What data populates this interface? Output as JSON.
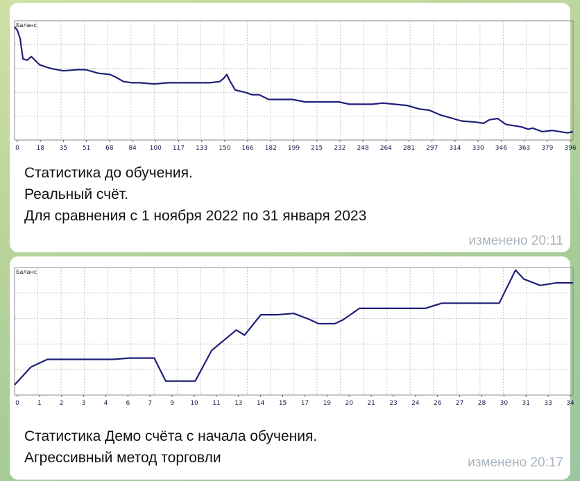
{
  "messages": [
    {
      "caption_lines": [
        "Статистика до обучения.",
        "Реальный счёт.",
        "Для сравнения с 1 ноября 2022 по 31 января 2023"
      ],
      "edited": "изменено 20:11"
    },
    {
      "caption_lines": [
        "Статистика Демо счёта с начала обучения.",
        "Агрессивный метод торговли"
      ],
      "edited": "изменено 20:17"
    }
  ],
  "colors": {
    "line": "#1f1f7a",
    "grid": "#c8c8c8",
    "tick": "#1a1a4a"
  },
  "chart_data": [
    {
      "type": "line",
      "title": "Баланс",
      "xlabel": "",
      "ylabel": "",
      "x_ticks": [
        "0",
        "18",
        "35",
        "51",
        "68",
        "84",
        "100",
        "117",
        "133",
        "150",
        "166",
        "182",
        "199",
        "215",
        "232",
        "248",
        "264",
        "281",
        "297",
        "314",
        "330",
        "346",
        "363",
        "379",
        "396"
      ],
      "xlim": [
        0,
        400
      ],
      "ylim": [
        0,
        100
      ],
      "grid": true,
      "series": [
        {
          "x": [
            0,
            2,
            4,
            6,
            9,
            12,
            18,
            26,
            35,
            45,
            51,
            60,
            68,
            72,
            78,
            84,
            90,
            100,
            110,
            117,
            125,
            133,
            140,
            147,
            150,
            152,
            154,
            158,
            165,
            170,
            175,
            182,
            190,
            199,
            208,
            215,
            225,
            232,
            240,
            248,
            256,
            264,
            272,
            281,
            290,
            297,
            305,
            314,
            320,
            330,
            336,
            340,
            346,
            352,
            363,
            368,
            371,
            378,
            385,
            396,
            400
          ],
          "y": [
            95,
            92,
            85,
            68,
            67,
            70,
            63,
            60,
            58,
            59,
            59,
            56,
            55,
            53,
            49,
            48,
            48,
            47,
            48,
            48,
            48,
            48,
            48,
            49,
            52,
            55,
            50,
            42,
            40,
            38,
            38,
            34,
            34,
            34,
            32,
            32,
            32,
            32,
            30,
            30,
            30,
            31,
            30,
            29,
            26,
            25,
            21,
            18,
            16,
            15,
            14,
            17,
            18,
            13,
            11,
            9,
            10,
            7,
            8,
            6,
            7
          ]
        }
      ]
    },
    {
      "type": "line",
      "title": "Баланс",
      "xlabel": "",
      "ylabel": "",
      "x_ticks": [
        "0",
        "1",
        "2",
        "3",
        "4",
        "6",
        "7",
        "9",
        "10",
        "11",
        "13",
        "14",
        "15",
        "17",
        "19",
        "20",
        "21",
        "23",
        "24",
        "26",
        "27",
        "28",
        "30",
        "31",
        "33",
        "34"
      ],
      "xlim": [
        0,
        34
      ],
      "ylim": [
        0,
        100
      ],
      "grid": true,
      "series": [
        {
          "x": [
            0,
            1,
            2,
            2.5,
            4,
            6,
            7,
            8.5,
            9.2,
            10,
            11,
            12,
            13.5,
            14,
            15,
            16,
            17,
            18,
            18.5,
            19.5,
            20,
            21,
            23,
            24,
            25,
            26,
            27,
            28,
            29.5,
            30.5,
            31,
            32,
            33,
            34
          ],
          "y": [
            8,
            22,
            28,
            28,
            28,
            28,
            29,
            29,
            11,
            11,
            11,
            35,
            51,
            47,
            63,
            63,
            64,
            59,
            56,
            56,
            59,
            68,
            68,
            68,
            68,
            72,
            72,
            72,
            72,
            98,
            91,
            86,
            88,
            88
          ]
        }
      ]
    }
  ]
}
